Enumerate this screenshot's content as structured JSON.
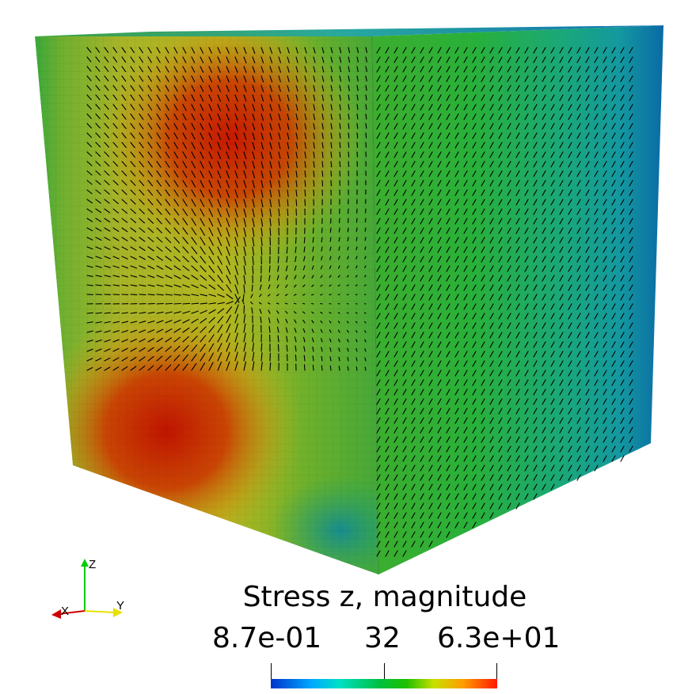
{
  "legend": {
    "title": "Stress z, magnitude",
    "min_label": "8.7e-01",
    "mid_label": "32",
    "max_label": "6.3e+01",
    "colormap": [
      "#0033cc",
      "#00a8ff",
      "#00e0c8",
      "#00c040",
      "#20c000",
      "#c8e000",
      "#ff9c00",
      "#ff1800"
    ]
  },
  "axes": {
    "z_label": "Z",
    "x_label": "X",
    "y_label": "Y",
    "z_color": "#00cc00",
    "x_color": "#cc0000",
    "y_color": "#e8e000"
  },
  "colors": {
    "background": "#ffffff",
    "high_stress": "#c81e00",
    "mid_stress": "#28b428",
    "low_stress": "#0a6ea0"
  }
}
